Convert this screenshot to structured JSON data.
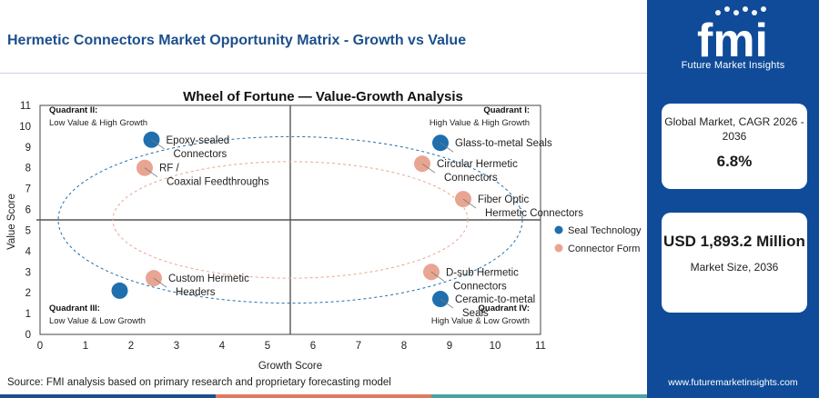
{
  "header": {
    "title": "Hermetic Connectors Market Opportunity Matrix - Growth vs Value"
  },
  "source_note": "Source: FMI analysis based on primary research and proprietary forecasting model",
  "sidebar": {
    "logo_text": "fmi",
    "logo_subtitle": "Future Market Insights",
    "cagr_card": {
      "label": "Global Market, CAGR 2026 - 2036",
      "value": "6.8%"
    },
    "size_card": {
      "value": "USD 1,893.2 Million",
      "label": "Market Size, 2036"
    },
    "website": "www.futuremarketinsights.com"
  },
  "colors": {
    "brand_blue": "#0f4b99",
    "seal_technology": "#1f6fae",
    "connector_form": "#e8a592",
    "title_blue": "#1c4f8c",
    "bottom_bar": [
      "#1c4f8c",
      "#e07a5f",
      "#4aa3a2"
    ]
  },
  "chart_data": {
    "type": "scatter",
    "title": "Wheel of Fortune — Value-Growth Analysis",
    "xlabel": "Growth Score",
    "ylabel": "Value Score",
    "xlim": [
      0,
      11
    ],
    "ylim": [
      0,
      11
    ],
    "xticks": [
      0,
      1,
      2,
      3,
      4,
      5,
      6,
      7,
      8,
      9,
      10,
      11
    ],
    "yticks": [
      0,
      1,
      2,
      3,
      4,
      5,
      6,
      7,
      8,
      9,
      10,
      11
    ],
    "divider_x": 5.5,
    "divider_y": 5.5,
    "grid": false,
    "legend_position": "right",
    "quadrants": [
      {
        "id": "q2",
        "title": "Quadrant II:",
        "subtitle": "Low Value & High Growth",
        "corner": "top-left"
      },
      {
        "id": "q1",
        "title": "Quadrant I:",
        "subtitle": "High Value & High Growth",
        "corner": "top-right"
      },
      {
        "id": "q3",
        "title": "Quadrant III:",
        "subtitle": "Low Value & Low Growth",
        "corner": "bottom-left"
      },
      {
        "id": "q4",
        "title": "Quadrant IV:",
        "subtitle": "High Value & Low Growth",
        "corner": "bottom-right"
      }
    ],
    "series": [
      {
        "name": "Seal Technology",
        "color": "#1f6fae",
        "ring": {
          "center": [
            5.5,
            5.5
          ],
          "radius": [
            5.1,
            4.0
          ]
        },
        "points": [
          {
            "label": "Epoxy-sealed Connectors",
            "x": 2.45,
            "y": 9.35
          },
          {
            "label": "Glass-to-metal Seals",
            "x": 8.8,
            "y": 9.2
          },
          {
            "label": "Ceramic-to-metal Seals",
            "x": 8.8,
            "y": 1.7
          },
          {
            "label": "",
            "x": 1.75,
            "y": 2.1
          }
        ]
      },
      {
        "name": "Connector Form",
        "color": "#e8a592",
        "ring": {
          "center": [
            5.5,
            5.5
          ],
          "radius": [
            3.9,
            2.8
          ]
        },
        "points": [
          {
            "label": "RF / Coaxial Feedthroughs",
            "x": 2.3,
            "y": 8.0
          },
          {
            "label": "Circular Hermetic Connectors",
            "x": 8.4,
            "y": 8.2
          },
          {
            "label": "Fiber Optic Hermetic Connectors",
            "x": 9.3,
            "y": 6.5
          },
          {
            "label": "D-sub Hermetic Connectors",
            "x": 8.6,
            "y": 3.0
          },
          {
            "label": "Custom Hermetic Headers",
            "x": 2.5,
            "y": 2.7
          }
        ]
      }
    ]
  }
}
